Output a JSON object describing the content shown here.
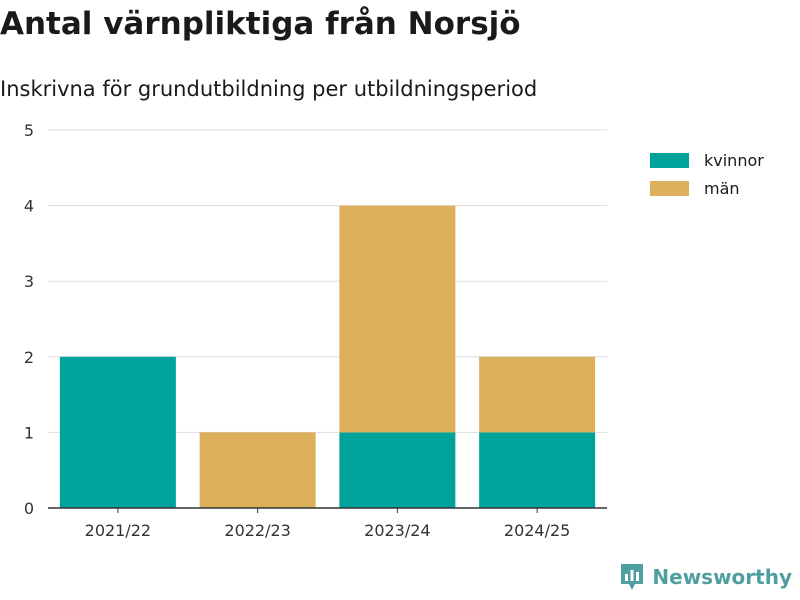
{
  "title": "Antal värnpliktiga från Norsjö",
  "subtitle": "Inskrivna för grundutbildning per utbildningsperiod",
  "brand": {
    "name": "Newsworthy",
    "icon": "newsworthy-logo-icon",
    "color": "#4f9ea1"
  },
  "chart_data": {
    "type": "bar",
    "stacked": true,
    "categories": [
      "2021/22",
      "2022/23",
      "2023/24",
      "2024/25"
    ],
    "series": [
      {
        "name": "kvinnor",
        "color": "#00a39a",
        "values": [
          2,
          0,
          1,
          1
        ]
      },
      {
        "name": "män",
        "color": "#dbaf5b",
        "values": [
          0,
          1,
          3,
          1
        ]
      }
    ],
    "y_ticks": [
      "0",
      "1",
      "2",
      "3",
      "4",
      "5"
    ],
    "ylim": [
      0,
      5
    ],
    "xlabel": "",
    "ylabel": "",
    "grid": true,
    "legend_position": "right"
  }
}
